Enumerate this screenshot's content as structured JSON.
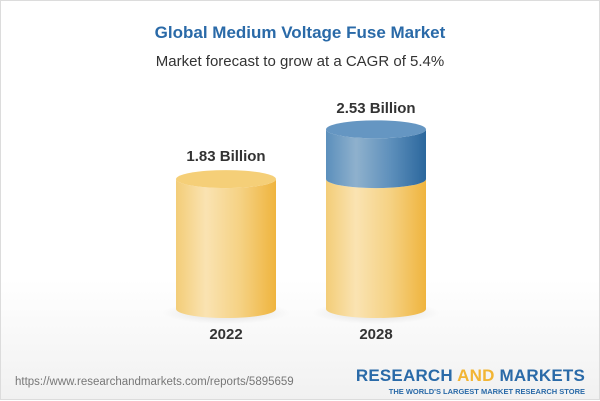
{
  "title": "Global Medium Voltage Fuse Market",
  "subtitle": "Market forecast to grow at a CAGR of 5.4%",
  "chart_data": {
    "type": "bar",
    "style": "3d-cylinder",
    "categories": [
      "2022",
      "2028"
    ],
    "values": [
      1.83,
      2.53
    ],
    "data_labels": [
      "1.83 Billion",
      "2.53 Billion"
    ],
    "unit": "Billion",
    "colors": {
      "base": "#f2c15a",
      "growth": "#3f78ab"
    }
  },
  "footer": {
    "url": "https://www.researchandmarkets.com/reports/5895659",
    "logo_part1": "RESEARCH ",
    "logo_part2": "AND",
    "logo_part3": " MARKETS",
    "tagline": "THE WORLD'S LARGEST MARKET RESEARCH STORE"
  }
}
